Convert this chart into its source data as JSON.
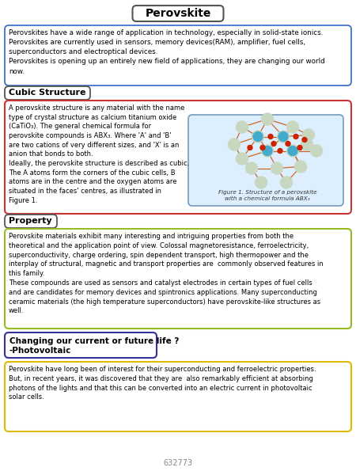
{
  "title": "Perovskite",
  "bg_color": "#ffffff",
  "intro_text": "Perovskites have a wide range of application in technology, especially in solid-state ionics.\nPerovskites are currently used in sensors, memory devices(RAM), amplifier, fuel cells,\nsuperconductors and electroptical devices.\nPerovskites is opening up an entirely new field of applications, they are changing our world\nnow.",
  "intro_box_edge": "#3366cc",
  "section1_title": "Cubic Structure",
  "section1_box_edge": "#cc3333",
  "section1_text": "A perovskite structure is any material with the name\ntype of crystal structure as calcium titanium oxide\n(CaTiO₃). The general chemical formula for\nperovskite compounds is ABX₃. Where 'A' and 'B'\nare two cations of very different sizes, and 'X' is an\nanion that bonds to both.\nIdeally, the perovskite structure is described as cubic.\nThe A atoms form the corners of the cubic cells, B\natoms are in the centre and the oxygen atoms are\nsituated in the faces' centres, as illustrated in\nFigure 1.",
  "section2_title": "Property",
  "section2_box_edge": "#99bb22",
  "section2_text": "Perovskite materials exhibit many interesting and intriguing properties from both the\ntheoretical and the application point of view. Colossal magnetoresistance, ferroelectricity,\nsuperconductivity, charge ordering, spin dependent transport, high thermopower and the\ninterplay of structural, magnetic and transport properties are  commonly observed features in\nthis family.\nThese compounds are used as sensors and catalyst electrodes in certain types of fuel cells\nand are candidates for memory devices and spintronics applications. Many superconducting\nceramic materials (the high temperature superconductors) have perovskite-like structures as\nwell.",
  "section3_title_line1": "Changing our current or future life ?",
  "section3_title_line2": "-Photovoltaic",
  "section3_title_box_edge": "#333399",
  "section3_box_edge": "#ddbb00",
  "section3_text": "Perovskite have long been of interest for their superconducting and ferroelectric properties.\nBut, in recent years, it was discovered that they are  also remarkably efficient at absorbing\nphotons of the lights and that this can be converted into an electric current in photovoltaic\nsolar cells.",
  "figure_caption": "Figure 1. Structure of a perovskite\nwith a chemical formula ABX₃",
  "footer": "632773",
  "title_box_edge": "#555555",
  "section_title_box_edge": "#555555"
}
